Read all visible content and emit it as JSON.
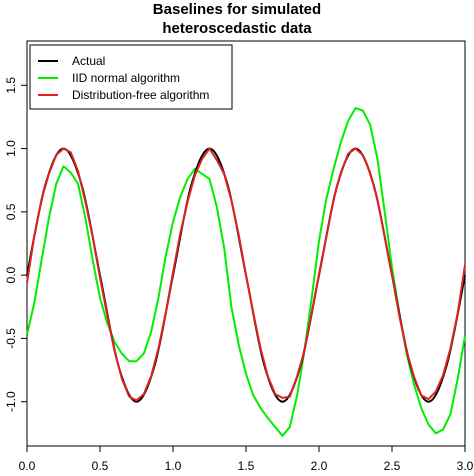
{
  "chart_data": {
    "type": "line",
    "title": "Baselines for simulated heteroscedastic data",
    "title_lines": [
      "Baselines for simulated",
      "heteroscedastic data"
    ],
    "xlabel": "",
    "ylabel": "",
    "xlim": [
      0,
      3
    ],
    "ylim": [
      -1.35,
      1.85
    ],
    "x_ticks": [
      "0.0",
      "0.5",
      "1.0",
      "1.5",
      "2.0",
      "2.5",
      "3.0"
    ],
    "y_ticks": [
      "-1.0",
      "-0.5",
      "0.0",
      "0.5",
      "1.0",
      "1.5"
    ],
    "grid": false,
    "legend_position": "top-left",
    "series": [
      {
        "name": "Actual",
        "color": "#000000",
        "x": [
          0,
          0.125,
          0.25,
          0.375,
          0.5,
          0.625,
          0.75,
          0.875,
          1.0,
          1.125,
          1.25,
          1.375,
          1.5,
          1.625,
          1.75,
          1.875,
          2.0,
          2.125,
          2.25,
          2.375,
          2.5,
          2.625,
          2.75,
          2.875,
          3.0
        ],
        "values": [
          0,
          0.71,
          1.0,
          0.71,
          0,
          -0.71,
          -1.0,
          -0.71,
          0,
          0.71,
          1.0,
          0.71,
          0,
          -0.71,
          -1.0,
          -0.71,
          0,
          0.71,
          1.0,
          0.71,
          0,
          -0.71,
          -1.0,
          -0.71,
          0
        ]
      },
      {
        "name": "IID normal algorithm",
        "color": "#00ee00",
        "x": [
          0,
          0.05,
          0.1,
          0.15,
          0.2,
          0.25,
          0.3,
          0.35,
          0.4,
          0.45,
          0.5,
          0.55,
          0.6,
          0.65,
          0.7,
          0.75,
          0.8,
          0.85,
          0.9,
          0.95,
          1.0,
          1.05,
          1.1,
          1.15,
          1.2,
          1.25,
          1.3,
          1.35,
          1.4,
          1.45,
          1.5,
          1.55,
          1.6,
          1.65,
          1.7,
          1.75,
          1.8,
          1.85,
          1.9,
          1.95,
          2.0,
          2.05,
          2.1,
          2.15,
          2.2,
          2.25,
          2.3,
          2.35,
          2.4,
          2.45,
          2.5,
          2.55,
          2.6,
          2.65,
          2.7,
          2.75,
          2.8,
          2.85,
          2.9,
          2.95,
          3.0
        ],
        "values": [
          -0.47,
          -0.22,
          0.12,
          0.45,
          0.72,
          0.86,
          0.81,
          0.72,
          0.45,
          0.12,
          -0.18,
          -0.38,
          -0.53,
          -0.62,
          -0.68,
          -0.68,
          -0.62,
          -0.45,
          -0.18,
          0.15,
          0.42,
          0.62,
          0.76,
          0.84,
          0.8,
          0.76,
          0.54,
          0.22,
          -0.25,
          -0.55,
          -0.78,
          -0.95,
          -1.05,
          -1.13,
          -1.2,
          -1.27,
          -1.2,
          -0.95,
          -0.6,
          -0.18,
          0.27,
          0.6,
          0.84,
          1.05,
          1.22,
          1.32,
          1.3,
          1.19,
          0.92,
          0.5,
          0.06,
          -0.3,
          -0.62,
          -0.86,
          -1.05,
          -1.18,
          -1.25,
          -1.22,
          -1.1,
          -0.82,
          -0.48
        ]
      },
      {
        "name": "Distribution-free algorithm",
        "color": "#dd2222",
        "x": [
          0,
          0.05,
          0.1,
          0.15,
          0.2,
          0.25,
          0.3,
          0.35,
          0.4,
          0.45,
          0.5,
          0.55,
          0.6,
          0.65,
          0.7,
          0.75,
          0.8,
          0.85,
          0.9,
          0.95,
          1.0,
          1.05,
          1.1,
          1.15,
          1.2,
          1.25,
          1.3,
          1.35,
          1.4,
          1.45,
          1.5,
          1.55,
          1.6,
          1.65,
          1.7,
          1.75,
          1.8,
          1.85,
          1.9,
          1.95,
          2.0,
          2.05,
          2.1,
          2.15,
          2.2,
          2.25,
          2.3,
          2.35,
          2.4,
          2.45,
          2.5,
          2.55,
          2.6,
          2.65,
          2.7,
          2.75,
          2.8,
          2.85,
          2.9,
          2.95,
          3.0
        ],
        "values": [
          -0.06,
          0.31,
          0.6,
          0.8,
          0.95,
          1.0,
          0.97,
          0.82,
          0.58,
          0.3,
          -0.02,
          -0.32,
          -0.6,
          -0.82,
          -0.96,
          -0.99,
          -0.94,
          -0.8,
          -0.58,
          -0.3,
          0.02,
          0.33,
          0.58,
          0.79,
          0.92,
          1.0,
          0.91,
          0.8,
          0.59,
          0.32,
          0.0,
          -0.3,
          -0.58,
          -0.8,
          -0.94,
          -0.97,
          -0.96,
          -0.8,
          -0.6,
          -0.3,
          0.01,
          0.3,
          0.6,
          0.81,
          0.96,
          1.0,
          0.95,
          0.81,
          0.6,
          0.3,
          0.0,
          -0.32,
          -0.6,
          -0.8,
          -0.95,
          -0.98,
          -0.92,
          -0.79,
          -0.58,
          -0.3,
          0.08
        ]
      }
    ]
  }
}
